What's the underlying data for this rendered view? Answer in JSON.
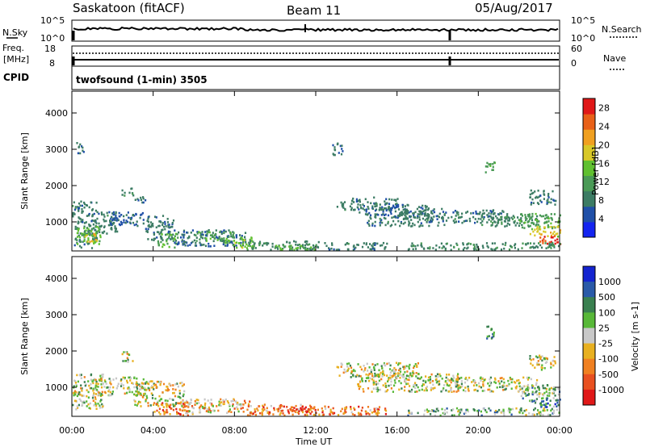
{
  "header": {
    "title": "Saskatoon (fitACF)",
    "beam": "Beam 11",
    "date": "05/Aug/2017"
  },
  "noise_panel": {
    "left_label": "N.Sky",
    "left_ticks": [
      "10^5",
      "10^0"
    ],
    "right_ticks": [
      "10^5",
      "10^0"
    ],
    "right_label": "N.Search"
  },
  "freq_panel": {
    "left_label_1": "Freq.",
    "left_label_2": "[MHz]",
    "left_ticks": [
      "18",
      "8"
    ],
    "right_ticks": [
      "60",
      "0"
    ],
    "right_label": "Nave"
  },
  "cpid": {
    "label": "CPID",
    "value": "twofsound (1-min) 3505"
  },
  "x_axis": {
    "label": "Time UT",
    "ticks": [
      "00:00",
      "04:00",
      "08:00",
      "12:00",
      "16:00",
      "20:00",
      "00:00"
    ]
  },
  "colors": {
    "power": [
      "#1424f0",
      "#2050a8",
      "#3c7c64",
      "#4a9a56",
      "#60c030",
      "#d8c828",
      "#f0a020",
      "#e86018",
      "#e01818"
    ],
    "velocity": [
      "#1424d0",
      "#2a5aa8",
      "#3a8050",
      "#58b838",
      "#c8c8c8",
      "#e8b020",
      "#f08020",
      "#e85020",
      "#e01818"
    ]
  },
  "chart_data": [
    {
      "type": "heatmap",
      "name": "power",
      "ylabel": "Slant Range [km]",
      "ylim": [
        200,
        4600
      ],
      "yticks": [
        1000,
        2000,
        3000,
        4000
      ],
      "xlim_hours": [
        0,
        24
      ],
      "colorbar": {
        "label": "Power [dB]",
        "ticks": [
          "4",
          "8",
          "12",
          "16",
          "20",
          "24",
          "28"
        ],
        "range": [
          0,
          30
        ]
      },
      "blobs": [
        {
          "t": [
            0.0,
            1.2
          ],
          "r": [
            300,
            1600
          ],
          "v": 8
        },
        {
          "t": [
            0.2,
            1.4
          ],
          "r": [
            400,
            900
          ],
          "v": 14
        },
        {
          "t": [
            0.6,
            1.2
          ],
          "r": [
            450,
            700
          ],
          "v": 20
        },
        {
          "t": [
            1.2,
            2.2
          ],
          "r": [
            700,
            1300
          ],
          "v": 8
        },
        {
          "t": [
            1.8,
            3.6
          ],
          "r": [
            900,
            1300
          ],
          "v": 6
        },
        {
          "t": [
            2.4,
            3.0
          ],
          "r": [
            1750,
            1950
          ],
          "v": 9
        },
        {
          "t": [
            3.0,
            3.6
          ],
          "r": [
            1550,
            1750
          ],
          "v": 8
        },
        {
          "t": [
            3.6,
            5.0
          ],
          "r": [
            500,
            1200
          ],
          "v": 8
        },
        {
          "t": [
            4.2,
            5.2
          ],
          "r": [
            300,
            700
          ],
          "v": 13
        },
        {
          "t": [
            5.0,
            8.5
          ],
          "r": [
            350,
            800
          ],
          "v": 7
        },
        {
          "t": [
            6.0,
            8.0
          ],
          "r": [
            500,
            750
          ],
          "v": 12
        },
        {
          "t": [
            7.5,
            9.0
          ],
          "r": [
            300,
            600
          ],
          "v": 15
        },
        {
          "t": [
            8.5,
            12.5
          ],
          "r": [
            250,
            500
          ],
          "v": 9
        },
        {
          "t": [
            10.0,
            12.0
          ],
          "r": [
            250,
            380
          ],
          "v": 14
        },
        {
          "t": [
            12.5,
            15.5
          ],
          "r": [
            250,
            450
          ],
          "v": 8
        },
        {
          "t": [
            13.0,
            16.0
          ],
          "r": [
            1350,
            1700
          ],
          "v": 8
        },
        {
          "t": [
            14.0,
            17.5
          ],
          "r": [
            1200,
            1500
          ],
          "v": 7
        },
        {
          "t": [
            14.5,
            18.5
          ],
          "r": [
            900,
            1200
          ],
          "v": 8
        },
        {
          "t": [
            16.0,
            18.5
          ],
          "r": [
            1100,
            1400
          ],
          "v": 8
        },
        {
          "t": [
            18.5,
            21.5
          ],
          "r": [
            1000,
            1350
          ],
          "v": 8
        },
        {
          "t": [
            20.0,
            23.0
          ],
          "r": [
            900,
            1200
          ],
          "v": 9
        },
        {
          "t": [
            20.3,
            20.8
          ],
          "r": [
            2350,
            2700
          ],
          "v": 13
        },
        {
          "t": [
            22.0,
            24.0
          ],
          "r": [
            850,
            1250
          ],
          "v": 12
        },
        {
          "t": [
            22.5,
            24.0
          ],
          "r": [
            600,
            900
          ],
          "v": 18
        },
        {
          "t": [
            23.0,
            24.0
          ],
          "r": [
            400,
            650
          ],
          "v": 26
        },
        {
          "t": [
            22.5,
            23.8
          ],
          "r": [
            1500,
            1900
          ],
          "v": 8
        },
        {
          "t": [
            0.2,
            0.6
          ],
          "r": [
            2900,
            3200
          ],
          "v": 7
        },
        {
          "t": [
            12.8,
            13.3
          ],
          "r": [
            2800,
            3200
          ],
          "v": 7
        },
        {
          "t": [
            16.5,
            24.0
          ],
          "r": [
            250,
            450
          ],
          "v": 9
        }
      ]
    },
    {
      "type": "heatmap",
      "name": "velocity",
      "ylabel": "Slant Range [km]",
      "ylim": [
        200,
        4600
      ],
      "yticks": [
        1000,
        2000,
        3000,
        4000
      ],
      "xlim_hours": [
        0,
        24
      ],
      "colorbar": {
        "label": "Velocity [m s-1]",
        "ticks": [
          "1000",
          "500",
          "100",
          "25",
          "-25",
          "-100",
          "-500",
          "-1000"
        ]
      },
      "blobs": [
        {
          "t": [
            0.0,
            1.5
          ],
          "r": [
            400,
            1400
          ],
          "v": 4
        },
        {
          "t": [
            1.0,
            3.5
          ],
          "r": [
            800,
            1300
          ],
          "v": 4
        },
        {
          "t": [
            2.4,
            3.0
          ],
          "r": [
            1700,
            2000
          ],
          "v": 4
        },
        {
          "t": [
            3.0,
            5.5
          ],
          "r": [
            500,
            1200
          ],
          "v": 4
        },
        {
          "t": [
            4.0,
            6.0
          ],
          "r": [
            250,
            600
          ],
          "v": 6
        },
        {
          "t": [
            5.5,
            9.0
          ],
          "r": [
            300,
            700
          ],
          "v": 5
        },
        {
          "t": [
            8.5,
            12.5
          ],
          "r": [
            250,
            550
          ],
          "v": 6
        },
        {
          "t": [
            10.0,
            12.0
          ],
          "r": [
            300,
            500
          ],
          "v": 7
        },
        {
          "t": [
            12.5,
            15.5
          ],
          "r": [
            250,
            500
          ],
          "v": 6
        },
        {
          "t": [
            13.0,
            17.0
          ],
          "r": [
            1300,
            1700
          ],
          "v": 4
        },
        {
          "t": [
            14.0,
            19.0
          ],
          "r": [
            900,
            1400
          ],
          "v": 4
        },
        {
          "t": [
            18.5,
            23.0
          ],
          "r": [
            900,
            1300
          ],
          "v": 4
        },
        {
          "t": [
            20.3,
            20.8
          ],
          "r": [
            2350,
            2700
          ],
          "v": 2
        },
        {
          "t": [
            22.0,
            24.0
          ],
          "r": [
            600,
            1100
          ],
          "v": 3
        },
        {
          "t": [
            23.0,
            24.0
          ],
          "r": [
            400,
            700
          ],
          "v": 2
        },
        {
          "t": [
            22.5,
            23.8
          ],
          "r": [
            1500,
            1900
          ],
          "v": 4
        },
        {
          "t": [
            16.5,
            24.0
          ],
          "r": [
            250,
            450
          ],
          "v": 3
        }
      ]
    }
  ]
}
